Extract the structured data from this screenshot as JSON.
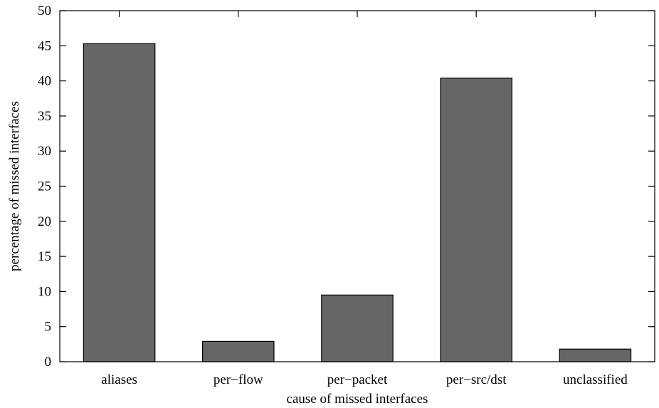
{
  "chart_data": {
    "type": "bar",
    "categories": [
      "aliases",
      "per−flow",
      "per−packet",
      "per−src/dst",
      "unclassified"
    ],
    "values": [
      45.3,
      2.9,
      9.5,
      40.4,
      1.8
    ],
    "title": "",
    "xlabel": "cause of missed interfaces",
    "ylabel": "percentage of missed interfaces",
    "ylim": [
      0,
      50
    ],
    "yticks": [
      0,
      5,
      10,
      15,
      20,
      25,
      30,
      35,
      40,
      45,
      50
    ],
    "grid": false,
    "bar_color": "#666666",
    "legend": "none"
  }
}
